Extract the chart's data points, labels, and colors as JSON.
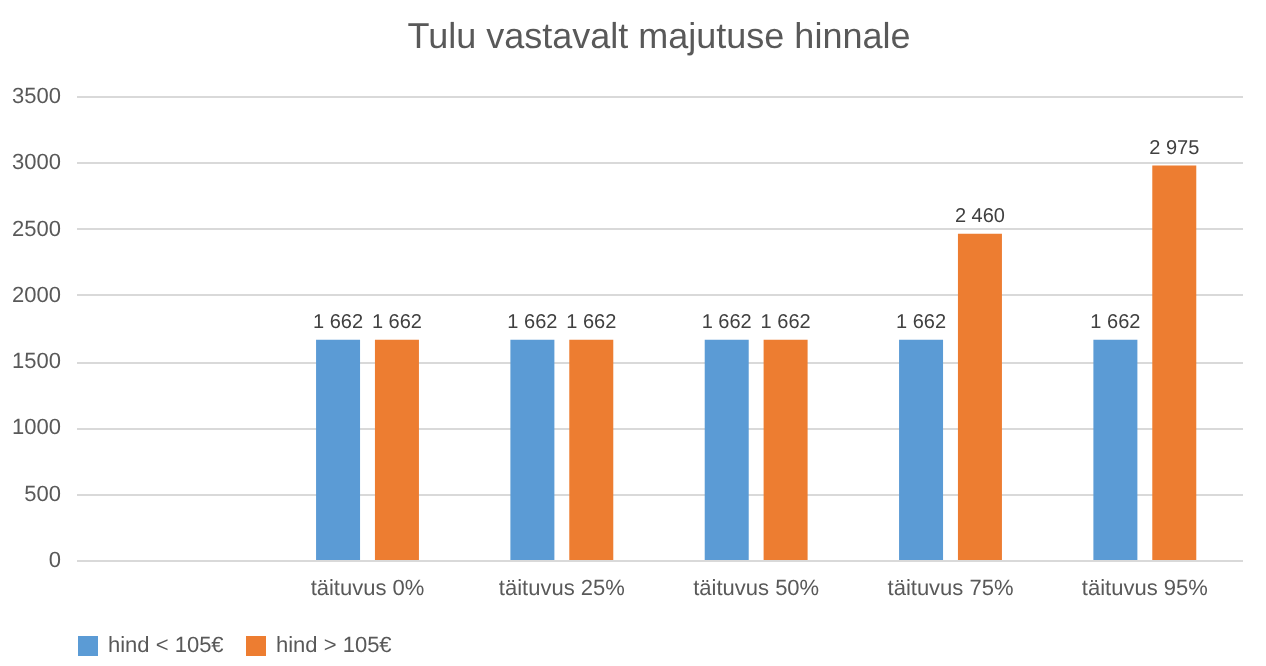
{
  "chart_data": {
    "type": "bar",
    "title": "Tulu vastavalt majutuse hinnale",
    "categories": [
      null,
      "täituvus 0%",
      "täituvus 25%",
      "täituvus 50%",
      "täituvus 75%",
      "täituvus 95%"
    ],
    "series": [
      {
        "name": "hind < 105€",
        "color": "#5b9bd5",
        "values": [
          null,
          1662,
          1662,
          1662,
          1662,
          1662
        ],
        "value_labels": [
          null,
          "1 662",
          "1 662",
          "1 662",
          "1 662",
          "1 662"
        ]
      },
      {
        "name": "hind > 105€",
        "color": "#ed7d31",
        "values": [
          null,
          1662,
          1662,
          1662,
          2460,
          2975
        ],
        "value_labels": [
          null,
          "1 662",
          "1 662",
          "1 662",
          "2 460",
          "2 975"
        ]
      }
    ],
    "ylim": [
      0,
      3500
    ],
    "yticks": [
      0,
      500,
      1000,
      1500,
      2000,
      2500,
      3000,
      3500
    ],
    "grid": "y",
    "legend": "bottom"
  }
}
